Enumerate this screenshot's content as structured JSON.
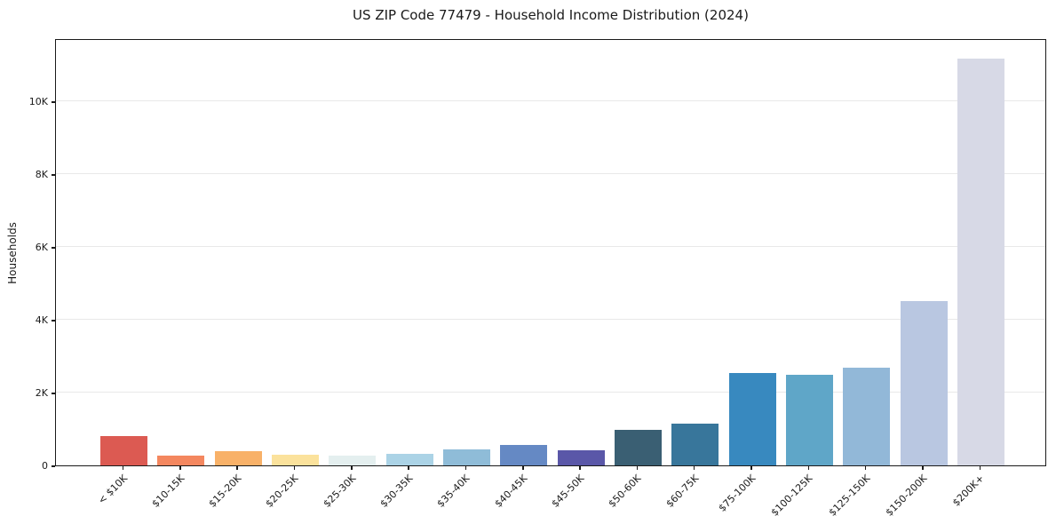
{
  "chart_data": {
    "type": "bar",
    "title": "US ZIP Code 77479 - Household Income Distribution (2024)",
    "xlabel": "",
    "ylabel": "Households",
    "ylim": [
      0,
      11730
    ],
    "grid": true,
    "grid_axis": "y",
    "legend": "none",
    "x_tick_rotation_deg": 45,
    "yticks": [
      {
        "value": 0,
        "label": "0"
      },
      {
        "value": 2000,
        "label": "2K"
      },
      {
        "value": 4000,
        "label": "4K"
      },
      {
        "value": 6000,
        "label": "6K"
      },
      {
        "value": 8000,
        "label": "8K"
      },
      {
        "value": 10000,
        "label": "10K"
      }
    ],
    "categories": [
      "< $10K",
      "$10-15K",
      "$15-20K",
      "$20-25K",
      "$25-30K",
      "$30-35K",
      "$35-40K",
      "$40-45K",
      "$45-50K",
      "$50-60K",
      "$60-75K",
      "$75-100K",
      "$100-125K",
      "$125-150K",
      "$150-200K",
      "$200K+"
    ],
    "values": [
      810,
      270,
      390,
      290,
      260,
      320,
      450,
      560,
      415,
      970,
      1150,
      2530,
      2480,
      2690,
      4500,
      11160
    ],
    "bar_colors": [
      "#dc5a52",
      "#f4875f",
      "#f8b168",
      "#fbe29c",
      "#e4efef",
      "#abd3e6",
      "#8fbcd8",
      "#6589c4",
      "#5a57a8",
      "#3a5f73",
      "#38769b",
      "#3889bf",
      "#5fa6c8",
      "#92b8d8",
      "#b9c7e1",
      "#d7d9e6"
    ]
  },
  "colors": {
    "background": "#ffffff",
    "spine": "#1a1a1a",
    "grid": "#e9e9e9",
    "tick_text": "#1a1a1a"
  }
}
